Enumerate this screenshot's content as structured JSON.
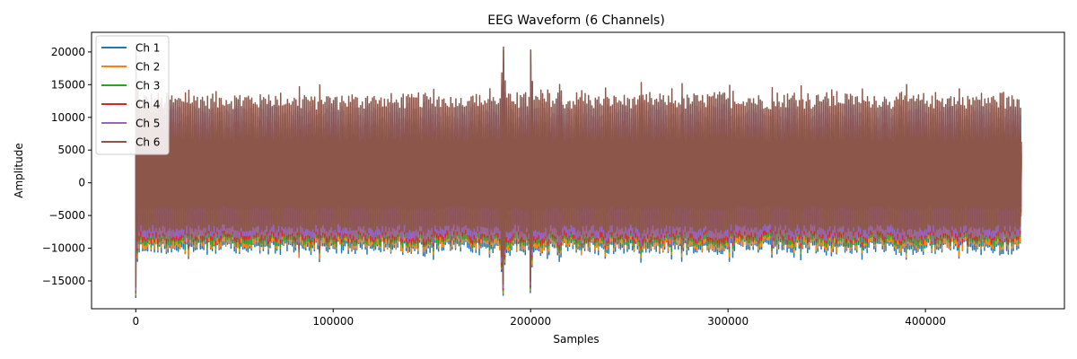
{
  "chart_data": {
    "type": "line",
    "title": "EEG Waveform (6 Channels)",
    "xlabel": "Samples",
    "ylabel": "Amplitude",
    "xlim": [
      -22400,
      470400
    ],
    "ylim": [
      -19250,
      23000
    ],
    "x_ticks": [
      0,
      100000,
      200000,
      300000,
      400000
    ],
    "x_tick_labels": [
      "0",
      "100000",
      "200000",
      "300000",
      "400000"
    ],
    "y_ticks": [
      -15000,
      -10000,
      -5000,
      0,
      5000,
      10000,
      15000,
      20000
    ],
    "y_tick_labels": [
      "−15000",
      "−10000",
      "−5000",
      "0",
      "5000",
      "10000",
      "15000",
      "20000"
    ],
    "grid": false,
    "legend_position": "top-left",
    "n_samples": 448000,
    "series": [
      {
        "name": "Ch 1",
        "color": "#1f77b4",
        "typical_min": -10000,
        "typical_max": 6500,
        "min": -17600,
        "max": 16000
      },
      {
        "name": "Ch 2",
        "color": "#ff7f0e",
        "typical_min": -9500,
        "typical_max": 7000,
        "min": -17200,
        "max": 17000
      },
      {
        "name": "Ch 3",
        "color": "#2ca02c",
        "typical_min": -9000,
        "typical_max": 8500,
        "min": -17000,
        "max": 21000
      },
      {
        "name": "Ch 4",
        "color": "#d62728",
        "typical_min": -8500,
        "typical_max": 9000,
        "min": -16800,
        "max": 19000
      },
      {
        "name": "Ch 5",
        "color": "#9467bd",
        "typical_min": -8000,
        "typical_max": 11000,
        "min": -16500,
        "max": 19500
      },
      {
        "name": "Ch 6",
        "color": "#8c564b",
        "typical_min": -7000,
        "typical_max": 12500,
        "min": -16000,
        "max": 21200
      }
    ],
    "events": [
      {
        "x": 0,
        "description": "startup transient"
      },
      {
        "x": 186000,
        "description": "large artifact spike"
      },
      {
        "x": 200000,
        "description": "secondary artifact"
      }
    ]
  }
}
